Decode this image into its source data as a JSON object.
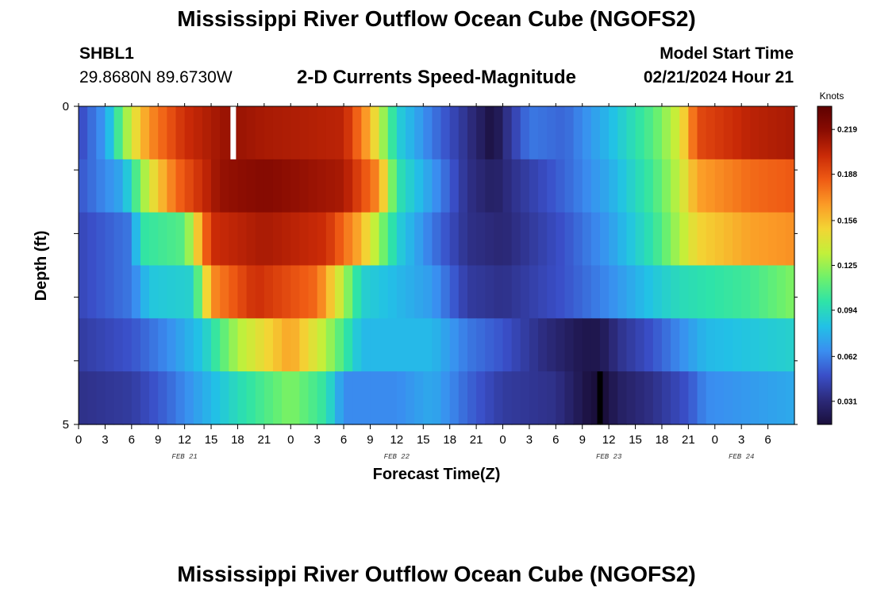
{
  "header": {
    "title_top": "Mississippi River Outflow Ocean Cube (NGOFS2)",
    "title_bottom": "Mississippi River Outflow Ocean Cube (NGOFS2)",
    "station_id": "SHBL1",
    "station_coords": "29.8680N  89.6730W",
    "subtitle": "2-D Currents Speed-Magnitude",
    "model_start_label": "Model Start Time",
    "model_start_value": "02/21/2024 Hour 21"
  },
  "chart_data": {
    "type": "heatmap",
    "xlabel": "Forecast Time(Z)",
    "ylabel": "Depth (ft)",
    "x_hours_from_feb21_00": [
      0,
      81
    ],
    "x_tick_labels": [
      "0",
      "3",
      "6",
      "9",
      "12",
      "15",
      "18",
      "21",
      "0",
      "3",
      "6",
      "9",
      "12",
      "15",
      "18",
      "21",
      "0",
      "3",
      "6",
      "9",
      "12",
      "15",
      "18",
      "21",
      "0",
      "3",
      "6"
    ],
    "date_labels": [
      {
        "label": "FEB 21",
        "hour": 12
      },
      {
        "label": "FEB 22",
        "hour": 36
      },
      {
        "label": "FEB 23",
        "hour": 60
      },
      {
        "label": "FEB 24",
        "hour": 75
      }
    ],
    "y_tick_labels": [
      "0",
      "5"
    ],
    "ylim": [
      0,
      5
    ],
    "colorbar": {
      "unit": "Knots",
      "range": [
        0.015,
        0.235
      ],
      "tick_values": [
        0.031,
        0.062,
        0.094,
        0.125,
        0.156,
        0.188,
        0.219
      ],
      "tick_labels": [
        "0.031",
        "0.062",
        "0.094",
        "0.125",
        "0.156",
        "0.188",
        "0.219"
      ],
      "colors": [
        "#1a0f3c",
        "#2c2a7a",
        "#3a4fc8",
        "#3a8ef0",
        "#22c1e6",
        "#2ee3a8",
        "#6ff16a",
        "#c2f03a",
        "#f3d534",
        "#fb9a26",
        "#ef5b14",
        "#c92a07",
        "#8a0c02",
        "#5e0101"
      ]
    },
    "depth_layers_ft": [
      0.5,
      1.5,
      2.5,
      3.5,
      4.5
    ],
    "series": [
      {
        "depth_ft": 0.5,
        "values": [
          {
            "hour": 0,
            "v": 0.045
          },
          {
            "hour": 3,
            "v": 0.07
          },
          {
            "hour": 6,
            "v": 0.14
          },
          {
            "hour": 8,
            "v": 0.17
          },
          {
            "hour": 12,
            "v": 0.2
          },
          {
            "hour": 17,
            "v": 0.215
          },
          {
            "hour": 21,
            "v": 0.21
          },
          {
            "hour": 30,
            "v": 0.205
          },
          {
            "hour": 33,
            "v": 0.16
          },
          {
            "hour": 36,
            "v": 0.09
          },
          {
            "hour": 40,
            "v": 0.06
          },
          {
            "hour": 44,
            "v": 0.035
          },
          {
            "hour": 47,
            "v": 0.015
          },
          {
            "hour": 48,
            "v": 0.03
          },
          {
            "hour": 51,
            "v": 0.06
          },
          {
            "hour": 55,
            "v": 0.055
          },
          {
            "hour": 60,
            "v": 0.08
          },
          {
            "hour": 65,
            "v": 0.11
          },
          {
            "hour": 68,
            "v": 0.14
          },
          {
            "hour": 70,
            "v": 0.19
          },
          {
            "hour": 76,
            "v": 0.205
          },
          {
            "hour": 81,
            "v": 0.21
          }
        ]
      },
      {
        "depth_ft": 1.5,
        "values": [
          {
            "hour": 0,
            "v": 0.05
          },
          {
            "hour": 5,
            "v": 0.075
          },
          {
            "hour": 8,
            "v": 0.14
          },
          {
            "hour": 11,
            "v": 0.18
          },
          {
            "hour": 16,
            "v": 0.215
          },
          {
            "hour": 21,
            "v": 0.22
          },
          {
            "hour": 30,
            "v": 0.21
          },
          {
            "hour": 34,
            "v": 0.17
          },
          {
            "hour": 36,
            "v": 0.1
          },
          {
            "hour": 40,
            "v": 0.07
          },
          {
            "hour": 44,
            "v": 0.035
          },
          {
            "hour": 47,
            "v": 0.025
          },
          {
            "hour": 49,
            "v": 0.035
          },
          {
            "hour": 55,
            "v": 0.055
          },
          {
            "hour": 60,
            "v": 0.075
          },
          {
            "hour": 65,
            "v": 0.105
          },
          {
            "hour": 68,
            "v": 0.135
          },
          {
            "hour": 70,
            "v": 0.165
          },
          {
            "hour": 76,
            "v": 0.18
          },
          {
            "hour": 81,
            "v": 0.185
          }
        ]
      },
      {
        "depth_ft": 2.5,
        "values": [
          {
            "hour": 0,
            "v": 0.045
          },
          {
            "hour": 6,
            "v": 0.06
          },
          {
            "hour": 7,
            "v": 0.1
          },
          {
            "hour": 12,
            "v": 0.11
          },
          {
            "hour": 15,
            "v": 0.2
          },
          {
            "hour": 21,
            "v": 0.21
          },
          {
            "hour": 28,
            "v": 0.2
          },
          {
            "hour": 32,
            "v": 0.16
          },
          {
            "hour": 36,
            "v": 0.09
          },
          {
            "hour": 40,
            "v": 0.06
          },
          {
            "hour": 44,
            "v": 0.035
          },
          {
            "hour": 48,
            "v": 0.03
          },
          {
            "hour": 55,
            "v": 0.05
          },
          {
            "hour": 60,
            "v": 0.07
          },
          {
            "hour": 65,
            "v": 0.1
          },
          {
            "hour": 68,
            "v": 0.13
          },
          {
            "hour": 70,
            "v": 0.15
          },
          {
            "hour": 76,
            "v": 0.165
          },
          {
            "hour": 81,
            "v": 0.17
          }
        ]
      },
      {
        "depth_ft": 3.5,
        "values": [
          {
            "hour": 0,
            "v": 0.045
          },
          {
            "hour": 6,
            "v": 0.06
          },
          {
            "hour": 8,
            "v": 0.085
          },
          {
            "hour": 13,
            "v": 0.09
          },
          {
            "hour": 15,
            "v": 0.17
          },
          {
            "hour": 20,
            "v": 0.2
          },
          {
            "hour": 27,
            "v": 0.18
          },
          {
            "hour": 30,
            "v": 0.13
          },
          {
            "hour": 32,
            "v": 0.09
          },
          {
            "hour": 40,
            "v": 0.07
          },
          {
            "hour": 44,
            "v": 0.04
          },
          {
            "hour": 48,
            "v": 0.035
          },
          {
            "hour": 55,
            "v": 0.05
          },
          {
            "hour": 60,
            "v": 0.065
          },
          {
            "hour": 65,
            "v": 0.085
          },
          {
            "hour": 68,
            "v": 0.095
          },
          {
            "hour": 76,
            "v": 0.105
          },
          {
            "hour": 81,
            "v": 0.12
          }
        ]
      },
      {
        "depth_ft": 4.5,
        "values": [
          {
            "hour": 0,
            "v": 0.04
          },
          {
            "hour": 6,
            "v": 0.05
          },
          {
            "hour": 10,
            "v": 0.065
          },
          {
            "hour": 14,
            "v": 0.085
          },
          {
            "hour": 18,
            "v": 0.13
          },
          {
            "hour": 24,
            "v": 0.165
          },
          {
            "hour": 28,
            "v": 0.13
          },
          {
            "hour": 32,
            "v": 0.08
          },
          {
            "hour": 40,
            "v": 0.08
          },
          {
            "hour": 44,
            "v": 0.06
          },
          {
            "hour": 48,
            "v": 0.05
          },
          {
            "hour": 52,
            "v": 0.035
          },
          {
            "hour": 57,
            "v": 0.02
          },
          {
            "hour": 59,
            "v": 0.02
          },
          {
            "hour": 61,
            "v": 0.035
          },
          {
            "hour": 65,
            "v": 0.05
          },
          {
            "hour": 68,
            "v": 0.065
          },
          {
            "hour": 71,
            "v": 0.08
          },
          {
            "hour": 76,
            "v": 0.085
          },
          {
            "hour": 81,
            "v": 0.09
          }
        ]
      },
      {
        "depth_ft": 5.0,
        "values": [
          {
            "hour": 0,
            "v": 0.035
          },
          {
            "hour": 6,
            "v": 0.04
          },
          {
            "hour": 10,
            "v": 0.055
          },
          {
            "hour": 14,
            "v": 0.075
          },
          {
            "hour": 18,
            "v": 0.095
          },
          {
            "hour": 24,
            "v": 0.12
          },
          {
            "hour": 28,
            "v": 0.1
          },
          {
            "hour": 30,
            "v": 0.065
          },
          {
            "hour": 36,
            "v": 0.065
          },
          {
            "hour": 40,
            "v": 0.075
          },
          {
            "hour": 44,
            "v": 0.055
          },
          {
            "hour": 48,
            "v": 0.04
          },
          {
            "hour": 54,
            "v": 0.035
          },
          {
            "hour": 57,
            "v": 0.02
          },
          {
            "hour": 59,
            "v": 0.01
          },
          {
            "hour": 61,
            "v": 0.025
          },
          {
            "hour": 65,
            "v": 0.035
          },
          {
            "hour": 69,
            "v": 0.05
          },
          {
            "hour": 71,
            "v": 0.065
          },
          {
            "hour": 76,
            "v": 0.07
          },
          {
            "hour": 81,
            "v": 0.075
          }
        ]
      }
    ],
    "missing_data_marker": {
      "hour": 17.5,
      "depth_ft": 0.5
    },
    "black_marker": {
      "hour": 59,
      "depth_ft": 5.0
    }
  }
}
